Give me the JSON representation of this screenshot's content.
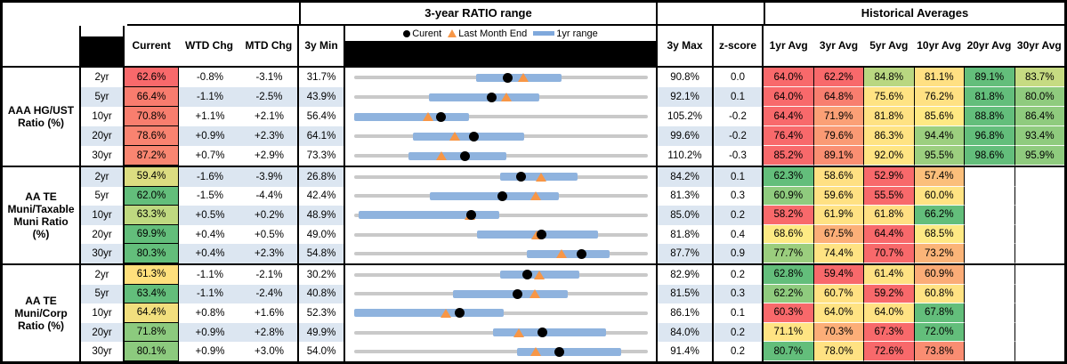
{
  "titles": {
    "range": "3-year RATIO range",
    "hist": "Historical Averages"
  },
  "headers": {
    "current": "Current",
    "wtd": "WTD Chg",
    "mtd": "MTD Chg",
    "min": "3y Min",
    "max": "3y Max",
    "z": "z-score",
    "avgs": [
      "1yr Avg",
      "3yr Avg",
      "5yr Avg",
      "10yr Avg",
      "20yr Avg",
      "30yr Avg"
    ]
  },
  "legend": {
    "current": "Curent",
    "lme": "Last Month End",
    "range": "1yr range"
  },
  "colors": {
    "row_alt": "#DCE6F1",
    "bar": "#8FB3DE",
    "line": "#C9C9C9",
    "triangle": "#F79646",
    "dot": "#000000"
  },
  "chart_data": {
    "type": "table",
    "title": "3-year RATIO range",
    "note": "Each row has a bullet chart: gray line = 3y min..max, blue bar = 1yr range (lo..hi), black dot = current, orange triangle = last month end (lme). Values in percent.",
    "sections": [
      {
        "label_lines": [
          "AAA HG/UST",
          "Ratio (%)"
        ],
        "rows": [
          {
            "tenor": "2yr",
            "current": "62.6%",
            "current_bg": "#F8696B",
            "wtd": "-0.8%",
            "mtd": "-3.1%",
            "min": "31.7%",
            "max": "90.8%",
            "z": "0.0",
            "range": {
              "min": 31.7,
              "max": 90.8,
              "cur": 62.6,
              "lme": 65.7,
              "lo": 56.3,
              "hi": 73.5
            },
            "avgs": [
              {
                "v": "64.0%",
                "bg": "#F8696B"
              },
              {
                "v": "62.2%",
                "bg": "#F8696B"
              },
              {
                "v": "84.8%",
                "bg": "#B9D781"
              },
              {
                "v": "81.1%",
                "bg": "#FFE083"
              },
              {
                "v": "89.1%",
                "bg": "#63BE7B"
              },
              {
                "v": "83.7%",
                "bg": "#C6DB82"
              }
            ]
          },
          {
            "tenor": "5yr",
            "current": "66.4%",
            "current_bg": "#F87C6E",
            "wtd": "-1.1%",
            "mtd": "-2.5%",
            "min": "43.9%",
            "max": "92.1%",
            "z": "0.1",
            "range": {
              "min": 43.9,
              "max": 92.1,
              "cur": 66.4,
              "lme": 68.9,
              "lo": 56.2,
              "hi": 74.3
            },
            "avgs": [
              {
                "v": "64.0%",
                "bg": "#F8696B"
              },
              {
                "v": "64.8%",
                "bg": "#F87E6F"
              },
              {
                "v": "75.6%",
                "bg": "#FFE383"
              },
              {
                "v": "76.2%",
                "bg": "#FFE183"
              },
              {
                "v": "81.8%",
                "bg": "#63BE7B"
              },
              {
                "v": "80.0%",
                "bg": "#8FCB7E"
              }
            ]
          },
          {
            "tenor": "10yr",
            "current": "70.8%",
            "current_bg": "#F87E6E",
            "wtd": "+1.1%",
            "mtd": "+2.1%",
            "min": "56.4%",
            "max": "105.2%",
            "z": "-0.2",
            "range": {
              "min": 56.4,
              "max": 105.2,
              "cur": 70.8,
              "lme": 68.7,
              "lo": 56.4,
              "hi": 75.5
            },
            "avgs": [
              {
                "v": "64.4%",
                "bg": "#F8696B"
              },
              {
                "v": "71.9%",
                "bg": "#FBA076"
              },
              {
                "v": "81.8%",
                "bg": "#FFE283"
              },
              {
                "v": "85.6%",
                "bg": "#FFE983"
              },
              {
                "v": "88.8%",
                "bg": "#63BE7B"
              },
              {
                "v": "86.4%",
                "bg": "#8FCB7E"
              }
            ]
          },
          {
            "tenor": "20yr",
            "current": "78.6%",
            "current_bg": "#F98370",
            "wtd": "+0.9%",
            "mtd": "+2.3%",
            "min": "64.1%",
            "max": "99.6%",
            "z": "-0.2",
            "range": {
              "min": 64.1,
              "max": 99.6,
              "cur": 78.6,
              "lme": 76.3,
              "lo": 71.2,
              "hi": 84.7
            },
            "avgs": [
              {
                "v": "76.4%",
                "bg": "#F8696B"
              },
              {
                "v": "79.6%",
                "bg": "#FA9A74"
              },
              {
                "v": "86.3%",
                "bg": "#FFE383"
              },
              {
                "v": "94.4%",
                "bg": "#9CCF7F"
              },
              {
                "v": "96.8%",
                "bg": "#63BE7B"
              },
              {
                "v": "93.4%",
                "bg": "#8FCB7E"
              }
            ]
          },
          {
            "tenor": "30yr",
            "current": "87.2%",
            "current_bg": "#F98671",
            "wtd": "+0.7%",
            "mtd": "+2.9%",
            "min": "73.3%",
            "max": "110.2%",
            "z": "-0.3",
            "range": {
              "min": 73.3,
              "max": 110.2,
              "cur": 87.2,
              "lme": 84.3,
              "lo": 80.1,
              "hi": 92.4
            },
            "avgs": [
              {
                "v": "85.2%",
                "bg": "#F8696B"
              },
              {
                "v": "89.1%",
                "bg": "#FA8F72"
              },
              {
                "v": "92.0%",
                "bg": "#FFE583"
              },
              {
                "v": "95.5%",
                "bg": "#9CCF7F"
              },
              {
                "v": "98.6%",
                "bg": "#63BE7B"
              },
              {
                "v": "95.9%",
                "bg": "#8FCB7E"
              }
            ]
          }
        ]
      },
      {
        "label_lines": [
          "AA TE",
          "Muni/Taxable",
          "Muni Ratio",
          "(%)"
        ],
        "rows": [
          {
            "tenor": "2yr",
            "current": "59.4%",
            "current_bg": "#DCDD81",
            "wtd": "-1.6%",
            "mtd": "-3.9%",
            "min": "26.8%",
            "max": "84.2%",
            "z": "0.1",
            "range": {
              "min": 26.8,
              "max": 84.2,
              "cur": 59.4,
              "lme": 63.3,
              "lo": 55.4,
              "hi": 70.4
            },
            "avgs": [
              {
                "v": "62.3%",
                "bg": "#63BE7B"
              },
              {
                "v": "58.6%",
                "bg": "#FFE083"
              },
              {
                "v": "52.9%",
                "bg": "#F8696B"
              },
              {
                "v": "57.4%",
                "bg": "#FBBF7B"
              },
              {
                "v": "",
                "bg": ""
              },
              {
                "v": "",
                "bg": ""
              }
            ]
          },
          {
            "tenor": "5yr",
            "current": "62.0%",
            "current_bg": "#63BE7B",
            "wtd": "-1.5%",
            "mtd": "-4.4%",
            "min": "42.4%",
            "max": "81.3%",
            "z": "0.3",
            "range": {
              "min": 42.4,
              "max": 81.3,
              "cur": 62.0,
              "lme": 66.4,
              "lo": 52.4,
              "hi": 69.5
            },
            "avgs": [
              {
                "v": "60.9%",
                "bg": "#8FCB7E"
              },
              {
                "v": "59.6%",
                "bg": "#FFE183"
              },
              {
                "v": "55.5%",
                "bg": "#F8696B"
              },
              {
                "v": "60.0%",
                "bg": "#FFE383"
              },
              {
                "v": "",
                "bg": ""
              },
              {
                "v": "",
                "bg": ""
              }
            ]
          },
          {
            "tenor": "10yr",
            "current": "63.3%",
            "current_bg": "#BFD980",
            "wtd": "+0.5%",
            "mtd": "+0.2%",
            "min": "48.9%",
            "max": "85.0%",
            "z": "0.2",
            "range": {
              "min": 48.9,
              "max": 85.0,
              "cur": 63.3,
              "lme": 63.1,
              "lo": 49.4,
              "hi": 66.7
            },
            "avgs": [
              {
                "v": "58.2%",
                "bg": "#F8696B"
              },
              {
                "v": "61.9%",
                "bg": "#FFE283"
              },
              {
                "v": "61.8%",
                "bg": "#FFE083"
              },
              {
                "v": "66.2%",
                "bg": "#63BE7B"
              },
              {
                "v": "",
                "bg": ""
              },
              {
                "v": "",
                "bg": ""
              }
            ]
          },
          {
            "tenor": "20yr",
            "current": "69.9%",
            "current_bg": "#63BE7B",
            "wtd": "+0.4%",
            "mtd": "+0.5%",
            "min": "49.0%",
            "max": "81.8%",
            "z": "0.4",
            "range": {
              "min": 49.0,
              "max": 81.8,
              "cur": 69.9,
              "lme": 69.4,
              "lo": 62.7,
              "hi": 76.2
            },
            "avgs": [
              {
                "v": "68.6%",
                "bg": "#FEEA84"
              },
              {
                "v": "67.5%",
                "bg": "#FCAF78"
              },
              {
                "v": "64.4%",
                "bg": "#F8696B"
              },
              {
                "v": "68.5%",
                "bg": "#FEE984"
              },
              {
                "v": "",
                "bg": ""
              },
              {
                "v": "",
                "bg": ""
              }
            ]
          },
          {
            "tenor": "30yr",
            "current": "80.3%",
            "current_bg": "#63BE7B",
            "wtd": "+0.4%",
            "mtd": "+2.3%",
            "min": "54.8%",
            "max": "87.7%",
            "z": "0.9",
            "range": {
              "min": 54.8,
              "max": 87.7,
              "cur": 80.3,
              "lme": 78.0,
              "lo": 74.1,
              "hi": 83.4
            },
            "avgs": [
              {
                "v": "77.7%",
                "bg": "#9BCE7E"
              },
              {
                "v": "74.4%",
                "bg": "#FFE383"
              },
              {
                "v": "70.7%",
                "bg": "#F8696B"
              },
              {
                "v": "73.2%",
                "bg": "#FBB478"
              },
              {
                "v": "",
                "bg": ""
              },
              {
                "v": "",
                "bg": ""
              }
            ]
          }
        ]
      },
      {
        "label_lines": [
          "AA TE",
          "Muni/Corp",
          "Ratio (%)"
        ],
        "rows": [
          {
            "tenor": "2yr",
            "current": "61.3%",
            "current_bg": "#FFE07C",
            "wtd": "-1.1%",
            "mtd": "-2.1%",
            "min": "30.2%",
            "max": "82.9%",
            "z": "0.2",
            "range": {
              "min": 30.2,
              "max": 82.9,
              "cur": 61.3,
              "lme": 63.4,
              "lo": 56.4,
              "hi": 70.6
            },
            "avgs": [
              {
                "v": "62.8%",
                "bg": "#63BE7B"
              },
              {
                "v": "59.4%",
                "bg": "#F8696B"
              },
              {
                "v": "61.4%",
                "bg": "#FFE283"
              },
              {
                "v": "60.9%",
                "bg": "#FBAC77"
              },
              {
                "v": "",
                "bg": ""
              },
              {
                "v": "",
                "bg": ""
              }
            ]
          },
          {
            "tenor": "5yr",
            "current": "63.4%",
            "current_bg": "#63BE7B",
            "wtd": "-1.1%",
            "mtd": "-2.4%",
            "min": "40.8%",
            "max": "81.5%",
            "z": "0.3",
            "range": {
              "min": 40.8,
              "max": 81.5,
              "cur": 63.4,
              "lme": 65.8,
              "lo": 54.5,
              "hi": 70.4
            },
            "avgs": [
              {
                "v": "62.2%",
                "bg": "#8FCB7E"
              },
              {
                "v": "60.7%",
                "bg": "#FFE182"
              },
              {
                "v": "59.2%",
                "bg": "#F8696B"
              },
              {
                "v": "60.8%",
                "bg": "#FFE283"
              },
              {
                "v": "",
                "bg": ""
              },
              {
                "v": "",
                "bg": ""
              }
            ]
          },
          {
            "tenor": "10yr",
            "current": "64.4%",
            "current_bg": "#F2DF7E",
            "wtd": "+0.8%",
            "mtd": "+1.6%",
            "min": "52.3%",
            "max": "86.1%",
            "z": "0.1",
            "range": {
              "min": 52.3,
              "max": 86.1,
              "cur": 64.4,
              "lme": 62.8,
              "lo": 52.3,
              "hi": 69.5
            },
            "avgs": [
              {
                "v": "60.3%",
                "bg": "#F8696B"
              },
              {
                "v": "64.0%",
                "bg": "#FFE383"
              },
              {
                "v": "64.0%",
                "bg": "#FFE283"
              },
              {
                "v": "67.8%",
                "bg": "#63BE7B"
              },
              {
                "v": "",
                "bg": ""
              },
              {
                "v": "",
                "bg": ""
              }
            ]
          },
          {
            "tenor": "20yr",
            "current": "71.8%",
            "current_bg": "#8CCA7E",
            "wtd": "+0.9%",
            "mtd": "+2.8%",
            "min": "49.9%",
            "max": "84.0%",
            "z": "0.2",
            "range": {
              "min": 49.9,
              "max": 84.0,
              "cur": 71.8,
              "lme": 69.0,
              "lo": 66.0,
              "hi": 79.1
            },
            "avgs": [
              {
                "v": "71.1%",
                "bg": "#FFE483"
              },
              {
                "v": "70.3%",
                "bg": "#FCAE78"
              },
              {
                "v": "67.3%",
                "bg": "#F8696B"
              },
              {
                "v": "72.0%",
                "bg": "#63BE7B"
              },
              {
                "v": "",
                "bg": ""
              },
              {
                "v": "",
                "bg": ""
              }
            ]
          },
          {
            "tenor": "30yr",
            "current": "80.1%",
            "current_bg": "#8CCA7E",
            "wtd": "+0.9%",
            "mtd": "+3.0%",
            "min": "54.0%",
            "max": "91.4%",
            "z": "0.2",
            "range": {
              "min": 54.0,
              "max": 91.4,
              "cur": 80.1,
              "lme": 77.1,
              "lo": 74.7,
              "hi": 88.0
            },
            "avgs": [
              {
                "v": "80.7%",
                "bg": "#63BE7B"
              },
              {
                "v": "78.0%",
                "bg": "#FFE283"
              },
              {
                "v": "72.6%",
                "bg": "#F8696B"
              },
              {
                "v": "73.8%",
                "bg": "#F98D72"
              },
              {
                "v": "",
                "bg": ""
              },
              {
                "v": "",
                "bg": ""
              }
            ]
          }
        ]
      }
    ]
  }
}
